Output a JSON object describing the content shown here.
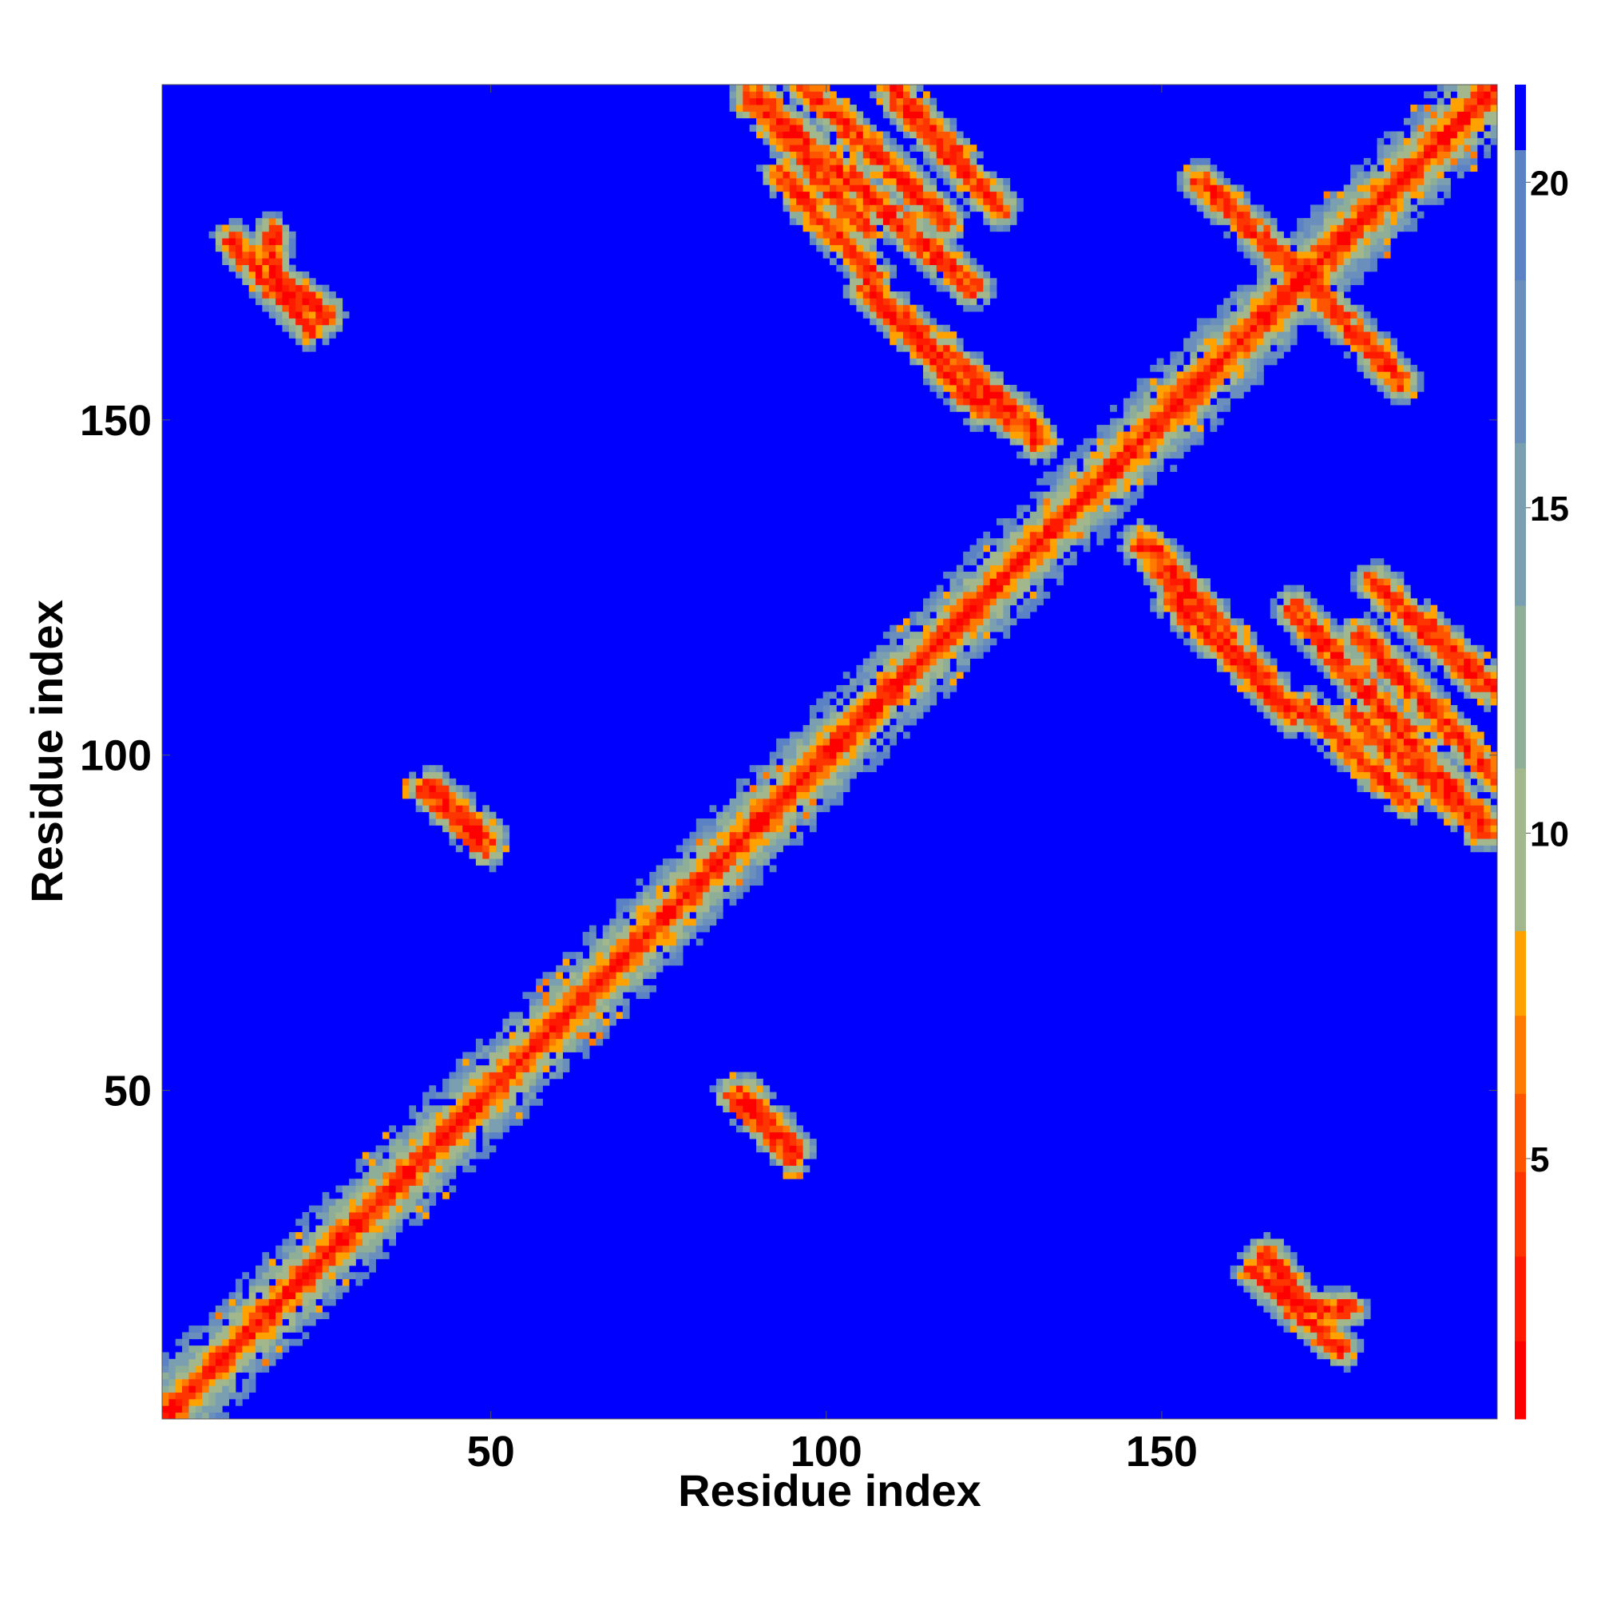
{
  "chart_data": {
    "type": "heatmap",
    "title": "",
    "xlabel": "Residue index",
    "ylabel": "Residue index",
    "n_residues": 200,
    "xlim": [
      1,
      200
    ],
    "ylim": [
      1,
      200
    ],
    "x_ticks": [
      50,
      100,
      150
    ],
    "y_ticks": [
      50,
      100,
      150
    ],
    "colorbar": {
      "range": [
        1,
        21.5
      ],
      "ticks": [
        5,
        10,
        15,
        20
      ],
      "bands": [
        {
          "from": 1.0,
          "to": 2.2,
          "color": "#ff0000"
        },
        {
          "from": 2.2,
          "to": 3.5,
          "color": "#ff1a00"
        },
        {
          "from": 3.5,
          "to": 4.8,
          "color": "#ff3500"
        },
        {
          "from": 4.8,
          "to": 6.0,
          "color": "#ff5500"
        },
        {
          "from": 6.0,
          "to": 7.2,
          "color": "#ff7a00"
        },
        {
          "from": 7.2,
          "to": 8.5,
          "color": "#ffa200"
        },
        {
          "from": 8.5,
          "to": 11.0,
          "color": "#a3b78c"
        },
        {
          "from": 11.0,
          "to": 13.5,
          "color": "#8fae98"
        },
        {
          "from": 13.5,
          "to": 16.0,
          "color": "#7a9fb0"
        },
        {
          "from": 16.0,
          "to": 18.5,
          "color": "#6b8fbd"
        },
        {
          "from": 18.5,
          "to": 20.5,
          "color": "#5a82c4"
        },
        {
          "from": 20.5,
          "to": 21.5,
          "color": "#0000ff"
        }
      ]
    },
    "contact_segments": [
      {
        "i0": 41,
        "j0": 95,
        "i1": 49,
        "j1": 88
      },
      {
        "i0": 86,
        "j0": 49,
        "i1": 95,
        "j1": 40
      },
      {
        "i0": 89,
        "j0": 198,
        "i1": 99,
        "j1": 188
      },
      {
        "i0": 98,
        "j0": 188,
        "i1": 106,
        "j1": 179
      },
      {
        "i0": 106,
        "j0": 170,
        "i1": 118,
        "j1": 158
      },
      {
        "i0": 111,
        "j0": 198,
        "i1": 126,
        "j1": 182
      },
      {
        "i0": 113,
        "j0": 163,
        "i1": 123,
        "j1": 152
      },
      {
        "i0": 122,
        "j0": 155,
        "i1": 132,
        "j1": 147
      },
      {
        "i0": 149,
        "j0": 131,
        "i1": 168,
        "j1": 108
      },
      {
        "i0": 170,
        "j0": 122,
        "i1": 199,
        "j1": 89
      },
      {
        "i0": 172,
        "j0": 107,
        "i1": 187,
        "j1": 93
      },
      {
        "i0": 180,
        "j0": 118,
        "i1": 200,
        "j1": 97
      },
      {
        "i0": 189,
        "j0": 120,
        "i1": 200,
        "j1": 110
      },
      {
        "i0": 166,
        "j0": 25,
        "i1": 172,
        "j1": 17
      },
      {
        "i0": 11,
        "j0": 177,
        "i1": 23,
        "j1": 164
      },
      {
        "i0": 156,
        "j0": 186,
        "i1": 170,
        "j1": 173
      },
      {
        "i0": 170,
        "j0": 17,
        "i1": 178,
        "j1": 17
      }
    ]
  }
}
